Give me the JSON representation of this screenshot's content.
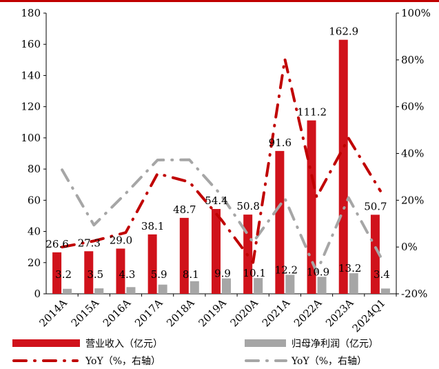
{
  "chart_data": {
    "type": "bar",
    "categories": [
      "2014A",
      "2015A",
      "2016A",
      "2017A",
      "2018A",
      "2019A",
      "2020A",
      "2021A",
      "2022A",
      "2023A",
      "2024Q1"
    ],
    "series": [
      {
        "name": "营业收入（亿元）",
        "type": "bar",
        "axis": "left",
        "color": "#d0121b",
        "values": [
          26.6,
          27.3,
          29.0,
          38.1,
          48.7,
          54.4,
          50.8,
          91.6,
          111.2,
          162.9,
          50.7
        ],
        "labels": [
          "26.6",
          "27.3",
          "29.0",
          "38.1",
          "48.7",
          "54.4",
          "50.8",
          "91.6",
          "111.2",
          "162.9",
          "50.7"
        ]
      },
      {
        "name": "归母净利润（亿元）",
        "type": "bar",
        "axis": "left",
        "color": "#a6a6a6",
        "values": [
          3.2,
          3.5,
          4.3,
          5.9,
          8.1,
          9.9,
          10.1,
          12.2,
          10.9,
          13.2,
          3.4
        ],
        "labels": [
          "3.2",
          "3.5",
          "4.3",
          "5.9",
          "8.1",
          "9.9",
          "10.1",
          "12.2",
          "10.9",
          "13.2",
          "3.4"
        ]
      },
      {
        "name": "YoY（%，右轴）",
        "type": "line",
        "axis": "right",
        "color": "#c00000",
        "values": [
          0,
          2.6,
          6.2,
          31.4,
          27.8,
          11.7,
          -6.6,
          80.3,
          21.4,
          46.5,
          24.0
        ]
      },
      {
        "name": "YoY（%，右轴）",
        "type": "line",
        "axis": "right",
        "color": "#a6a6a6",
        "values": [
          33,
          9.4,
          22.9,
          37.2,
          37.3,
          22.2,
          2.0,
          20.8,
          -10.7,
          21.1,
          -4.0
        ]
      }
    ],
    "y_left": {
      "min": 0,
      "max": 180,
      "ticks": [
        "0",
        "20",
        "40",
        "60",
        "80",
        "100",
        "120",
        "140",
        "160",
        "180"
      ]
    },
    "y_right": {
      "min": -20,
      "max": 100,
      "ticks": [
        "-20%",
        "0%",
        "20%",
        "40%",
        "60%",
        "80%",
        "100%"
      ]
    },
    "grid": false,
    "legend_position": "bottom"
  },
  "colors": {
    "accent": "#c00000",
    "revenue": "#d0121b",
    "profit": "#a6a6a6"
  }
}
